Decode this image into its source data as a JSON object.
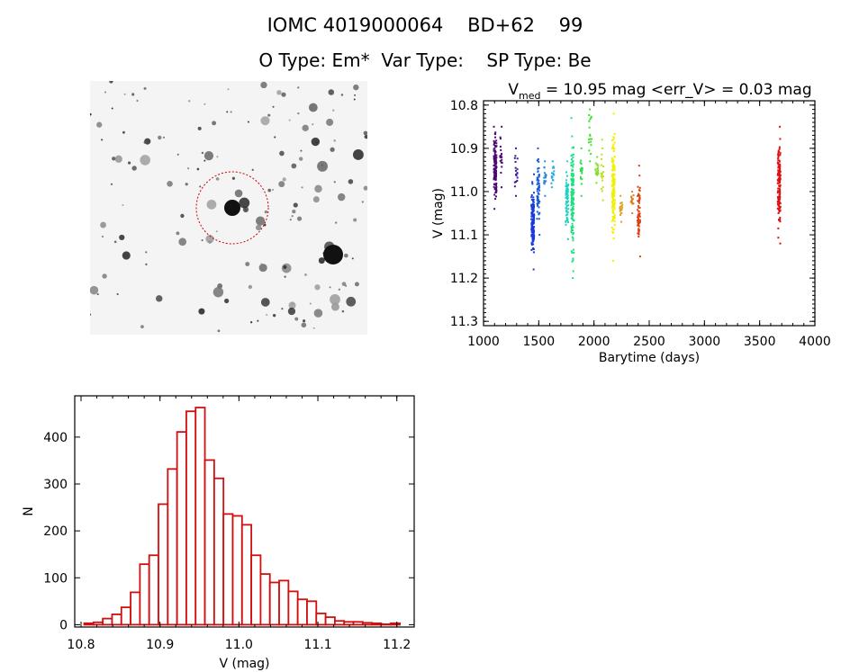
{
  "header": {
    "title": "IOMC 4019000064    BD+62    99",
    "subtitle": "O Type: Em*  Var Type:    SP Type: Be"
  },
  "sky_image": {
    "marker_color": "#cc0000"
  },
  "chart_data": [
    {
      "type": "scatter",
      "title_main": "V",
      "title_sub": "med",
      "title_rest": " = 10.95 mag <err_V> = 0.03 mag",
      "xlabel": "Barytime (days)",
      "ylabel": "V (mag)",
      "xlim": [
        1000,
        4000
      ],
      "ylim": [
        11.31,
        10.79
      ],
      "y_inverted": true,
      "xticks": [
        1000,
        1500,
        2000,
        2500,
        3000,
        3500,
        4000
      ],
      "yticks": [
        "10.8",
        "10.9",
        "11.0",
        "11.1",
        "11.2",
        "11.3"
      ],
      "grid": false,
      "observation_groups": [
        {
          "x": 1110,
          "v_range": [
            10.85,
            11.04
          ],
          "color": "#4b0a6e",
          "density": "high"
        },
        {
          "x": 1160,
          "v_range": [
            10.85,
            10.99
          ],
          "color": "#500a78",
          "density": "low"
        },
        {
          "x": 1300,
          "v_range": [
            10.9,
            11.01
          ],
          "color": "#3a1a9a",
          "density": "low"
        },
        {
          "x": 1450,
          "v_range": [
            10.96,
            11.18
          ],
          "color": "#1a3ad8",
          "density": "high"
        },
        {
          "x": 1500,
          "v_range": [
            10.9,
            11.1
          ],
          "color": "#1a5ad8",
          "density": "medium"
        },
        {
          "x": 1560,
          "v_range": [
            10.93,
            11.01
          ],
          "color": "#2a8ad8",
          "density": "low"
        },
        {
          "x": 1630,
          "v_range": [
            10.93,
            10.99
          ],
          "color": "#2aaae0",
          "density": "low"
        },
        {
          "x": 1760,
          "v_range": [
            10.93,
            11.11
          ],
          "color": "#20d0c0",
          "density": "medium"
        },
        {
          "x": 1810,
          "v_range": [
            10.83,
            11.2
          ],
          "color": "#20e080",
          "density": "high"
        },
        {
          "x": 1890,
          "v_range": [
            10.9,
            11.01
          ],
          "color": "#30e050",
          "density": "low"
        },
        {
          "x": 1970,
          "v_range": [
            10.81,
            10.93
          ],
          "color": "#40e030",
          "density": "low"
        },
        {
          "x": 2030,
          "v_range": [
            10.92,
            10.98
          ],
          "color": "#80e020",
          "density": "low"
        },
        {
          "x": 2080,
          "v_range": [
            10.88,
            11.02
          ],
          "color": "#c0e020",
          "density": "low"
        },
        {
          "x": 2180,
          "v_range": [
            10.82,
            11.16
          ],
          "color": "#f0f000",
          "density": "high"
        },
        {
          "x": 2250,
          "v_range": [
            11.01,
            11.07
          ],
          "color": "#e0a020",
          "density": "low"
        },
        {
          "x": 2350,
          "v_range": [
            11.0,
            11.05
          ],
          "color": "#e08020",
          "density": "low"
        },
        {
          "x": 2410,
          "v_range": [
            10.94,
            11.15
          ],
          "color": "#e04010",
          "density": "medium"
        },
        {
          "x": 3680,
          "v_range": [
            10.85,
            11.12
          ],
          "color": "#e01010",
          "density": "high"
        }
      ]
    },
    {
      "type": "bar",
      "subtype": "histogram",
      "xlabel": "V (mag)",
      "ylabel": "N",
      "xlim": [
        10.792,
        11.222
      ],
      "ylim": [
        -5,
        488
      ],
      "xticks": [
        "10.8",
        "10.9",
        "11.0",
        "11.1",
        "11.2"
      ],
      "yticks": [
        0,
        100,
        200,
        300,
        400
      ],
      "bin_start": 10.804,
      "bin_width": 0.01176,
      "values": [
        3,
        5,
        13,
        22,
        37,
        69,
        129,
        148,
        257,
        332,
        411,
        455,
        463,
        351,
        312,
        236,
        232,
        213,
        148,
        108,
        90,
        94,
        71,
        54,
        50,
        24,
        16,
        8,
        6,
        6,
        4,
        3,
        1,
        3
      ],
      "color": "#d01010",
      "grid": false
    }
  ]
}
